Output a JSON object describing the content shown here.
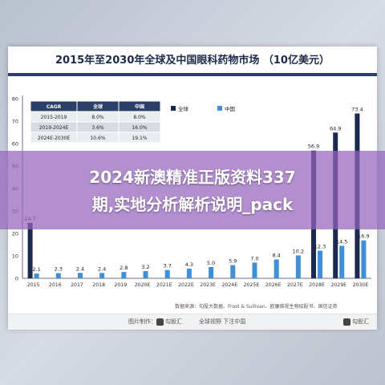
{
  "header": {
    "title": "2015年至2030年全球及中国眼科药物市场 （10亿美元）"
  },
  "overlay": {
    "line1": "2024新澳精准正版资料337",
    "line2": "期,实地分析解析说明_pack"
  },
  "legend": {
    "global": "全球",
    "china": "中国"
  },
  "cagr_table": {
    "headers": [
      "CAGR",
      "全球",
      "中国"
    ],
    "rows": [
      [
        "2015-2019",
        "8.0%",
        "8.0%"
      ],
      [
        "2019-2024E",
        "3.6%",
        "16.0%"
      ],
      [
        "2024E-2030E",
        "10.6%",
        "19.1%"
      ]
    ]
  },
  "source": "数据来源：勾股大数据、Frost & Sullivan、欧康维视生物招股书、国信证券",
  "footer": {
    "left": "图片制作：",
    "brand_left": "勾股汇",
    "mid": "全球视野 下注中国",
    "brand_right": "勾股汇"
  },
  "colors": {
    "global": "#1b2a4e",
    "china": "#3f8fd8",
    "header_bar": "#2c3f66",
    "overlay": "#9664be"
  },
  "chart_data": {
    "type": "bar",
    "title": "2015年至2030年全球及中国眼科药物市场 （10亿美元）",
    "categories": [
      "2015",
      "2016",
      "2017",
      "2018",
      "2019",
      "2020E",
      "2021E",
      "2022E",
      "2023E",
      "2024E",
      "2025E",
      "2026E",
      "2027E",
      "2028E",
      "2029E",
      "2030E"
    ],
    "series": [
      {
        "name": "全球",
        "values": [
          24.7,
          null,
          null,
          null,
          null,
          null,
          null,
          null,
          null,
          null,
          null,
          null,
          null,
          56.9,
          64.9,
          73.4
        ],
        "labels": [
          "24.7",
          "",
          "",
          "",
          "",
          "",
          "",
          "",
          "",
          "",
          "",
          "",
          "",
          "56.9",
          "64.9",
          "73.4"
        ]
      },
      {
        "name": "中国",
        "values": [
          2.1,
          2.3,
          2.4,
          2.4,
          2.8,
          3.2,
          3.7,
          4.3,
          5.0,
          5.9,
          7.0,
          8.4,
          10.2,
          12.3,
          14.5,
          16.9
        ],
        "labels": [
          "2.1",
          "2.3",
          "2.4",
          "2.4",
          "2.8",
          "3.2",
          "3.7",
          "4.3",
          "5.0",
          "5.9",
          "7.0",
          "8.4",
          "10.2",
          "12.3",
          "14.5",
          "16.9"
        ]
      }
    ],
    "yticks": [
      "0",
      "10",
      "20",
      "30",
      "40",
      "50",
      "60",
      "70",
      "80"
    ],
    "ylim": [
      0,
      80
    ],
    "grid": false,
    "legend_position": "top-right"
  }
}
